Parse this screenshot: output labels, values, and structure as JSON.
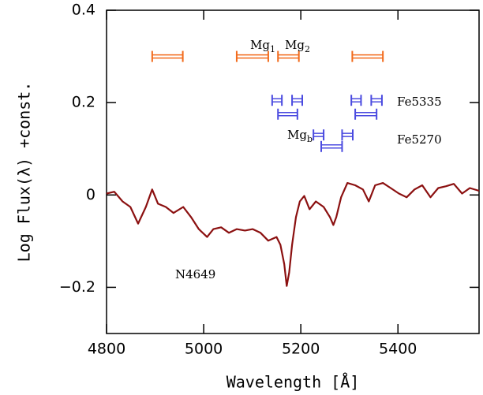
{
  "chart_data": {
    "type": "line",
    "xlabel": "Wavelength [Å]",
    "ylabel": "Log Flux(λ)  +const.",
    "xlim": [
      4800,
      5567
    ],
    "ylim": [
      -0.3,
      0.4
    ],
    "xticks": [
      4800,
      5000,
      5200,
      5400
    ],
    "yticks": [
      {
        "value": -0.2,
        "label": "−0.2"
      },
      0,
      0.2,
      0.4
    ],
    "series": [
      {
        "name": "N4649",
        "color": "#8b1010",
        "x": [
          4800,
          4816,
          4833,
          4849,
          4865,
          4881,
          4894,
          4906,
          4922,
          4938,
          4958,
          4974,
          4990,
          5007,
          5020,
          5036,
          5052,
          5068,
          5085,
          5101,
          5117,
          5133,
          5150,
          5158,
          5166,
          5171,
          5176,
          5182,
          5190,
          5198,
          5207,
          5218,
          5231,
          5247,
          5260,
          5267,
          5273,
          5283,
          5296,
          5312,
          5328,
          5340,
          5353,
          5369,
          5385,
          5402,
          5418,
          5434,
          5450,
          5467,
          5483,
          5499,
          5515,
          5532,
          5548,
          5567
        ],
        "values": [
          0.003,
          0.007,
          -0.014,
          -0.026,
          -0.062,
          -0.026,
          0.012,
          -0.019,
          -0.026,
          -0.039,
          -0.026,
          -0.048,
          -0.074,
          -0.091,
          -0.074,
          -0.07,
          -0.082,
          -0.074,
          -0.077,
          -0.074,
          -0.082,
          -0.099,
          -0.091,
          -0.108,
          -0.15,
          -0.197,
          -0.168,
          -0.108,
          -0.048,
          -0.014,
          -0.002,
          -0.031,
          -0.014,
          -0.026,
          -0.048,
          -0.065,
          -0.048,
          -0.005,
          0.026,
          0.021,
          0.012,
          -0.014,
          0.021,
          0.026,
          0.015,
          0.003,
          -0.005,
          0.012,
          0.021,
          -0.005,
          0.015,
          0.019,
          0.024,
          0.003,
          0.015,
          0.009
        ]
      }
    ],
    "bands": [
      {
        "color": "#f26a1b",
        "y": 0.3,
        "ranges": [
          [
            4894,
            4957
          ],
          [
            5068,
            5133
          ],
          [
            5153,
            5196
          ],
          [
            5306,
            5369
          ]
        ]
      },
      {
        "color": "#4a4ae0",
        "y": 0.205,
        "ranges": [
          [
            5141,
            5161
          ],
          [
            5182,
            5203
          ],
          [
            5304,
            5324
          ],
          [
            5345,
            5367
          ]
        ]
      },
      {
        "color": "#4a4ae0",
        "y": 0.175,
        "ranges": [
          [
            5153,
            5193
          ],
          [
            5312,
            5356
          ]
        ]
      },
      {
        "color": "#4a4ae0",
        "y": 0.13,
        "ranges": [
          [
            5226,
            5247
          ],
          [
            5285,
            5307
          ]
        ]
      },
      {
        "color": "#4a4ae0",
        "y": 0.105,
        "ranges": [
          [
            5242,
            5285
          ]
        ]
      }
    ],
    "annotations": [
      {
        "base": "Mg",
        "sub": "1"
      },
      {
        "base": "Mg",
        "sub": "2"
      },
      {
        "base": "Mg",
        "sub": "b"
      },
      {
        "base": "Fe5335"
      },
      {
        "base": "Fe5270"
      },
      {
        "base": "N4649"
      }
    ]
  }
}
